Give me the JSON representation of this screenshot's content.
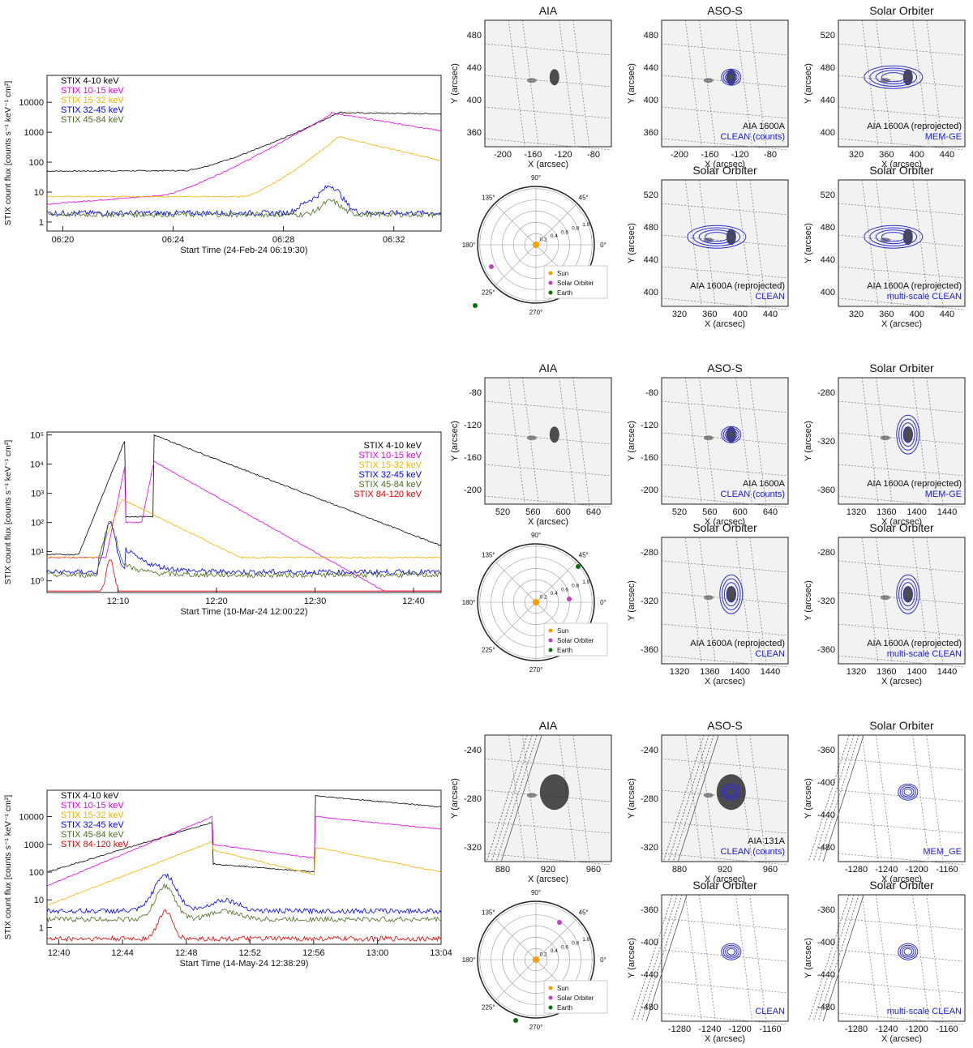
{
  "rows": [
    {
      "lightcurve": {
        "ylabel": "STIX count flux [counts s⁻¹ keV⁻¹ cm²]",
        "xlabel": "Start Time (24-Feb-24 06:19:30)",
        "xticks": [
          "06:20",
          "06:24",
          "06:28",
          "06:32"
        ],
        "yticks": [
          "1",
          "10",
          "100",
          "1000",
          "10000"
        ],
        "legend": [
          {
            "label": "STIX 4-10 keV",
            "color": "#000000"
          },
          {
            "label": "STIX 10-15 keV",
            "color": "#e600e6"
          },
          {
            "label": "STIX 15-32 keV",
            "color": "#f0b400"
          },
          {
            "label": "STIX 32-45 keV",
            "color": "#0000ff"
          },
          {
            "label": "STIX 45-84 keV",
            "color": "#4c6b1f"
          }
        ]
      },
      "polar_legend": [
        "Sun",
        "Solar Orbiter",
        "Earth"
      ],
      "panels": [
        {
          "title": "AIA",
          "yticks": [
            "480",
            "440",
            "400",
            "360"
          ],
          "xticks": [
            "-200",
            "-160",
            "-120",
            "-80"
          ],
          "xlabel": "X (arcsec)",
          "ylabel": "Y (arcsec)",
          "note1": "",
          "note2": ""
        },
        {
          "title": "ASO-S",
          "yticks": [
            "480",
            "440",
            "400",
            "360"
          ],
          "xticks": [
            "-200",
            "-160",
            "-120",
            "-80"
          ],
          "xlabel": "X (arcsec)",
          "ylabel": "Y (arcsec)",
          "note1": "AIA 1600A",
          "note2": "CLEAN (counts)"
        },
        {
          "title": "Solar Orbiter",
          "yticks": [
            "520",
            "480",
            "440",
            "400"
          ],
          "xticks": [
            "320",
            "360",
            "400",
            "440"
          ],
          "xlabel": "X (arcsec)",
          "ylabel": "Y (arcsec)",
          "note1": "AIA 1600A (reprojected)",
          "note2": "MEM-GE"
        },
        {
          "title": "Solar Orbiter",
          "yticks": [
            "520",
            "480",
            "440",
            "400"
          ],
          "xticks": [
            "320",
            "360",
            "400",
            "440"
          ],
          "xlabel": "X (arcsec)",
          "ylabel": "Y (arcsec)",
          "note1": "AIA 1600A (reprojected)",
          "note2": "CLEAN"
        },
        {
          "title": "Solar Orbiter",
          "yticks": [
            "520",
            "480",
            "440",
            "400"
          ],
          "xticks": [
            "320",
            "360",
            "400",
            "440"
          ],
          "xlabel": "X (arcsec)",
          "ylabel": "Y (arcsec)",
          "note1": "AIA 1600A (reprojected)",
          "note2": "multi-scale CLEAN"
        }
      ]
    },
    {
      "lightcurve": {
        "ylabel": "STIX count flux [counts s⁻¹ keV⁻¹ cm²]",
        "xlabel": "Start Time (10-Mar-24 12:00:22)",
        "xticks": [
          "12:10",
          "12:20",
          "12:30",
          "12:40"
        ],
        "yticks": [
          "10⁰",
          "10¹",
          "10²",
          "10³",
          "10⁴",
          "10⁵"
        ],
        "legend": [
          {
            "label": "STIX 4-10 keV",
            "color": "#000000"
          },
          {
            "label": "STIX 10-15 keV",
            "color": "#e600e6"
          },
          {
            "label": "STIX 15-32 keV",
            "color": "#f0b400"
          },
          {
            "label": "STIX 32-45 keV",
            "color": "#0000ff"
          },
          {
            "label": "STIX 45-84 keV",
            "color": "#4c6b1f"
          },
          {
            "label": "STIX 84-120 keV",
            "color": "#e00000"
          }
        ]
      },
      "polar_legend": [
        "Sun",
        "Solar Orbiter",
        "Earth"
      ],
      "panels": [
        {
          "title": "AIA",
          "yticks": [
            "-80",
            "-120",
            "-160",
            "-200"
          ],
          "xticks": [
            "520",
            "560",
            "600",
            "640"
          ],
          "xlabel": "X (arcsec)",
          "ylabel": "Y (arcsec)",
          "note1": "",
          "note2": ""
        },
        {
          "title": "ASO-S",
          "yticks": [
            "-80",
            "-120",
            "-160",
            "-200"
          ],
          "xticks": [
            "520",
            "560",
            "600",
            "640"
          ],
          "xlabel": "X (arcsec)",
          "ylabel": "Y (arcsec)",
          "note1": "AIA 1600A",
          "note2": "CLEAN (counts)"
        },
        {
          "title": "Solar Orbiter",
          "yticks": [
            "-280",
            "-320",
            "-360"
          ],
          "xticks": [
            "1320",
            "1360",
            "1400",
            "1440"
          ],
          "xlabel": "X (arcsec)",
          "ylabel": "Y (arcsec)",
          "note1": "AIA 1600A (reprojected)",
          "note2": "MEM-GE"
        },
        {
          "title": "Solar Orbiter",
          "yticks": [
            "-280",
            "-320",
            "-360"
          ],
          "xticks": [
            "1320",
            "1360",
            "1400",
            "1440"
          ],
          "xlabel": "X (arcsec)",
          "ylabel": "Y (arcsec)",
          "note1": "AIA 1600A (reprojected)",
          "note2": "CLEAN"
        },
        {
          "title": "Solar Orbiter",
          "yticks": [
            "-280",
            "-320",
            "-360"
          ],
          "xticks": [
            "1320",
            "1360",
            "1400",
            "1440"
          ],
          "xlabel": "X (arcsec)",
          "ylabel": "Y (arcsec)",
          "note1": "AIA 1600A (reprojected)",
          "note2": "multi-scale CLEAN"
        }
      ]
    },
    {
      "lightcurve": {
        "ylabel": "STIX count flux [counts s⁻¹ keV⁻¹ cm²]",
        "xlabel": "Start Time (14-May-24 12:38:29)",
        "xticks": [
          "12:40",
          "12:44",
          "12:48",
          "12:52",
          "12:56",
          "13:00",
          "13:04"
        ],
        "yticks": [
          "1",
          "10",
          "100",
          "1000",
          "10000"
        ],
        "legend": [
          {
            "label": "STIX 4-10 keV",
            "color": "#000000"
          },
          {
            "label": "STIX 10-15 keV",
            "color": "#e600e6"
          },
          {
            "label": "STIX 15-32 keV",
            "color": "#f0b400"
          },
          {
            "label": "STIX 32-45 keV",
            "color": "#0000ff"
          },
          {
            "label": "STIX 45-84 keV",
            "color": "#4c6b1f"
          },
          {
            "label": "STIX 84-120 keV",
            "color": "#e00000"
          }
        ]
      },
      "polar_legend": [
        "Sun",
        "Solar Orbiter",
        "Earth"
      ],
      "panels": [
        {
          "title": "AIA",
          "yticks": [
            "-240",
            "-280",
            "-320"
          ],
          "xticks": [
            "880",
            "920",
            "960"
          ],
          "xlabel": "X (arcsec)",
          "ylabel": "Y (arcsec)",
          "note1": "",
          "note2": ""
        },
        {
          "title": "ASO-S",
          "yticks": [
            "-240",
            "-280",
            "-320"
          ],
          "xticks": [
            "880",
            "920",
            "960"
          ],
          "xlabel": "X (arcsec)",
          "ylabel": "Y (arcsec)",
          "note1": "AIA 131A",
          "note2": "CLEAN (counts)"
        },
        {
          "title": "Solar Orbiter",
          "yticks": [
            "-360",
            "-400",
            "-440",
            "-480"
          ],
          "xticks": [
            "-1280",
            "-1240",
            "-1200",
            "-1160"
          ],
          "xlabel": "X (arcsec)",
          "ylabel": "Y (arcsec)",
          "note1": "",
          "note2": "MEM_GE"
        },
        {
          "title": "Solar Orbiter",
          "yticks": [
            "-360",
            "-400",
            "-440",
            "-480"
          ],
          "xticks": [
            "-1280",
            "-1240",
            "-1200",
            "-1160"
          ],
          "xlabel": "X (arcsec)",
          "ylabel": "Y (arcsec)",
          "note1": "",
          "note2": "CLEAN"
        },
        {
          "title": "Solar Orbiter",
          "yticks": [
            "-360",
            "-400",
            "-440",
            "-480"
          ],
          "xticks": [
            "-1280",
            "-1240",
            "-1200",
            "-1160"
          ],
          "xlabel": "X (arcsec)",
          "ylabel": "Y (arcsec)",
          "note1": "",
          "note2": "multi-scale CLEAN"
        }
      ]
    }
  ],
  "polar": {
    "angle_labels": [
      "90°",
      "45°",
      "0°",
      "315°",
      "270°",
      "225°",
      "180°",
      "135°"
    ],
    "radial_labels": [
      "0.2",
      "0.4",
      "0.6",
      "0.8",
      "1.0"
    ],
    "colors": {
      "sun": "#f5a000",
      "solar_orbiter": "#c040c0",
      "earth": "#0a6e0a"
    }
  },
  "colors": {
    "contour": "#3030d0",
    "note_blue": "#2020d0"
  }
}
